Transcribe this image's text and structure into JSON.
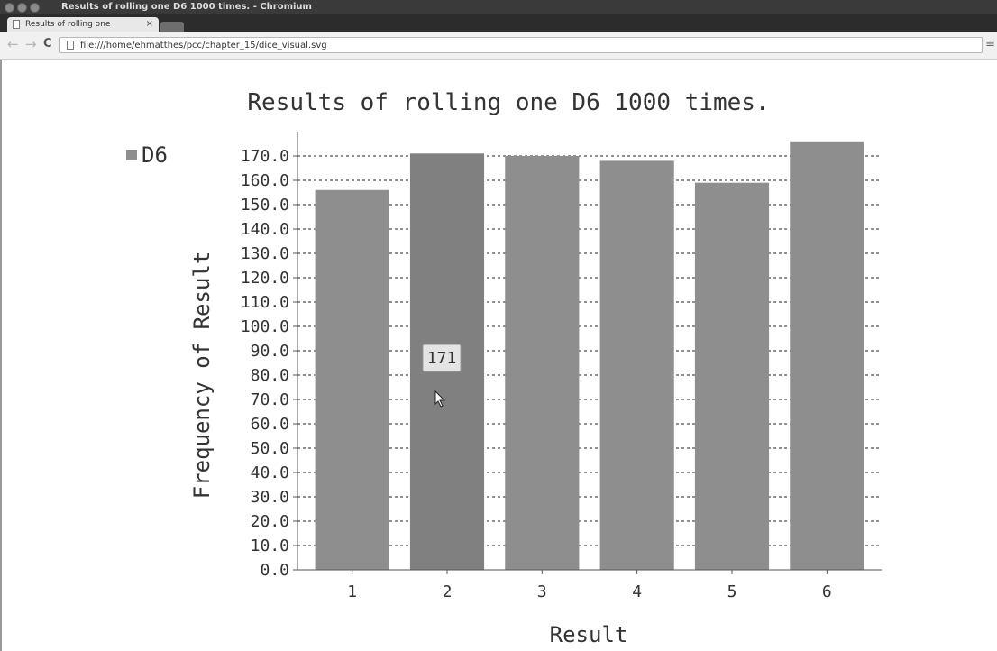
{
  "window": {
    "title": "Results of rolling one D6 1000 times. - Chromium"
  },
  "tab": {
    "title": "Results of rolling one",
    "close_glyph": "×"
  },
  "toolbar": {
    "back_glyph": "←",
    "forward_glyph": "→",
    "reload_glyph": "C",
    "url": "file:///home/ehmatthes/pcc/chapter_15/dice_visual.svg",
    "menu_glyph": "≡"
  },
  "colors": {
    "bar": "#8e8e8e",
    "bar_hover": "#808080",
    "axis": "#555555",
    "grid": "#222222",
    "text": "#333333"
  },
  "chart_data": {
    "type": "bar",
    "title": "Results of rolling one D6 1000 times.",
    "xlabel": "Result",
    "ylabel": "Frequency of Result",
    "categories": [
      "1",
      "2",
      "3",
      "4",
      "5",
      "6"
    ],
    "series": [
      {
        "name": "D6",
        "values": [
          156,
          171,
          170,
          168,
          159,
          176
        ]
      }
    ],
    "ylim": [
      0,
      180
    ],
    "yticks": [
      0,
      10,
      20,
      30,
      40,
      50,
      60,
      70,
      80,
      90,
      100,
      110,
      120,
      130,
      140,
      150,
      160,
      170
    ],
    "ytick_labels": [
      "0.0",
      "10.0",
      "20.0",
      "30.0",
      "40.0",
      "50.0",
      "60.0",
      "70.0",
      "80.0",
      "90.0",
      "100.0",
      "110.0",
      "120.0",
      "130.0",
      "140.0",
      "150.0",
      "160.0",
      "170.0"
    ],
    "grid": true,
    "legend_position": "top-left",
    "tooltip": {
      "category": "2",
      "text": "171"
    }
  }
}
